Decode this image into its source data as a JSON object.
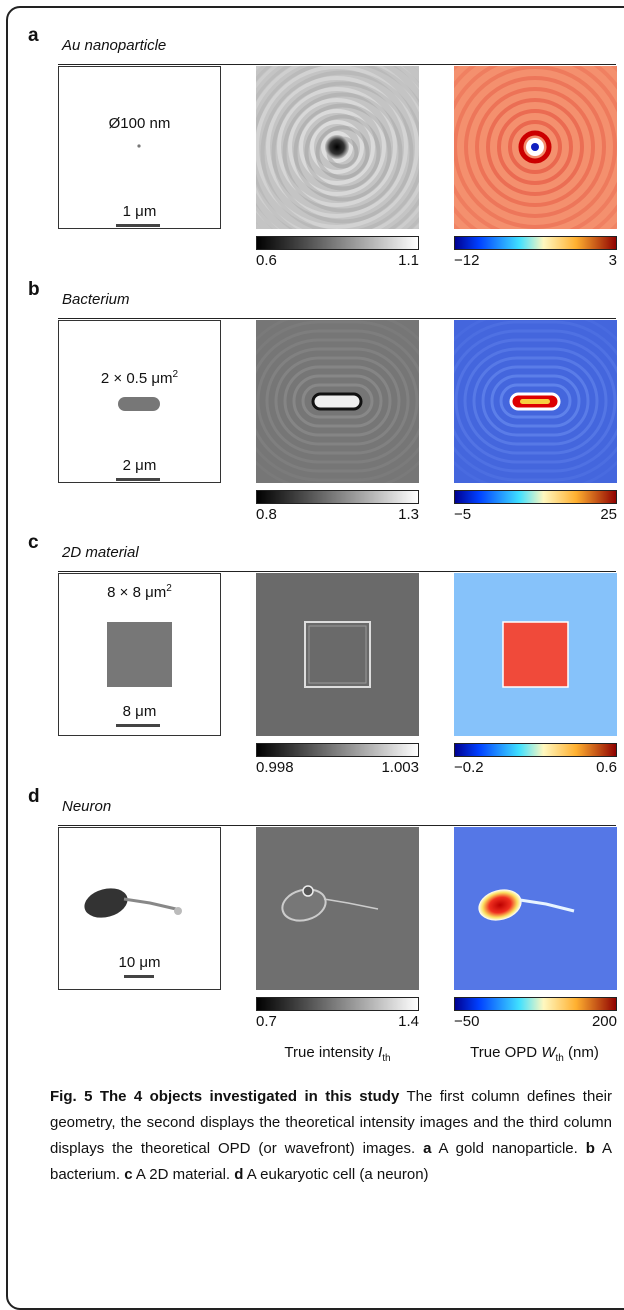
{
  "panels": [
    {
      "letter": "a",
      "title": "Au nanoparticle",
      "size_label": "Ø100 nm",
      "scale_label": "1 μm",
      "intensity_range": [
        "0.6",
        "1.1"
      ],
      "opd_range": [
        "−12",
        "3"
      ]
    },
    {
      "letter": "b",
      "title": "Bacterium",
      "size_label": "2 × 0.5 μm",
      "size_sup": "2",
      "scale_label": "2 μm",
      "intensity_range": [
        "0.8",
        "1.3"
      ],
      "opd_range": [
        "−5",
        "25"
      ]
    },
    {
      "letter": "c",
      "title": "2D material",
      "size_label": "8 × 8 μm",
      "size_sup": "2",
      "scale_label": "8 μm",
      "intensity_range": [
        "0.998",
        "1.003"
      ],
      "opd_range": [
        "−0.2",
        "0.6"
      ]
    },
    {
      "letter": "d",
      "title": "Neuron",
      "scale_label": "10 μm",
      "intensity_range": [
        "0.7",
        "1.4"
      ],
      "opd_range": [
        "−50",
        "200"
      ]
    }
  ],
  "axis_labels": {
    "intensity": "True intensity",
    "intensity_var": "I",
    "intensity_sub": "th",
    "opd": "True OPD",
    "opd_var": "W",
    "opd_sub": "th",
    "opd_unit": "(nm)"
  },
  "caption": {
    "title": "Fig. 5 The 4 objects investigated in this study",
    "text": "The first column defines their geometry, the second displays the theoretical intensity images and the third column displays the theoretical OPD (or wavefront) images.",
    "items": [
      {
        "letter": "a",
        "text": "A gold nanoparticle."
      },
      {
        "letter": "b",
        "text": "A bacterium."
      },
      {
        "letter": "c",
        "text": "A 2D material."
      },
      {
        "letter": "d",
        "text": "A eukaryotic cell (a neuron)"
      }
    ]
  }
}
